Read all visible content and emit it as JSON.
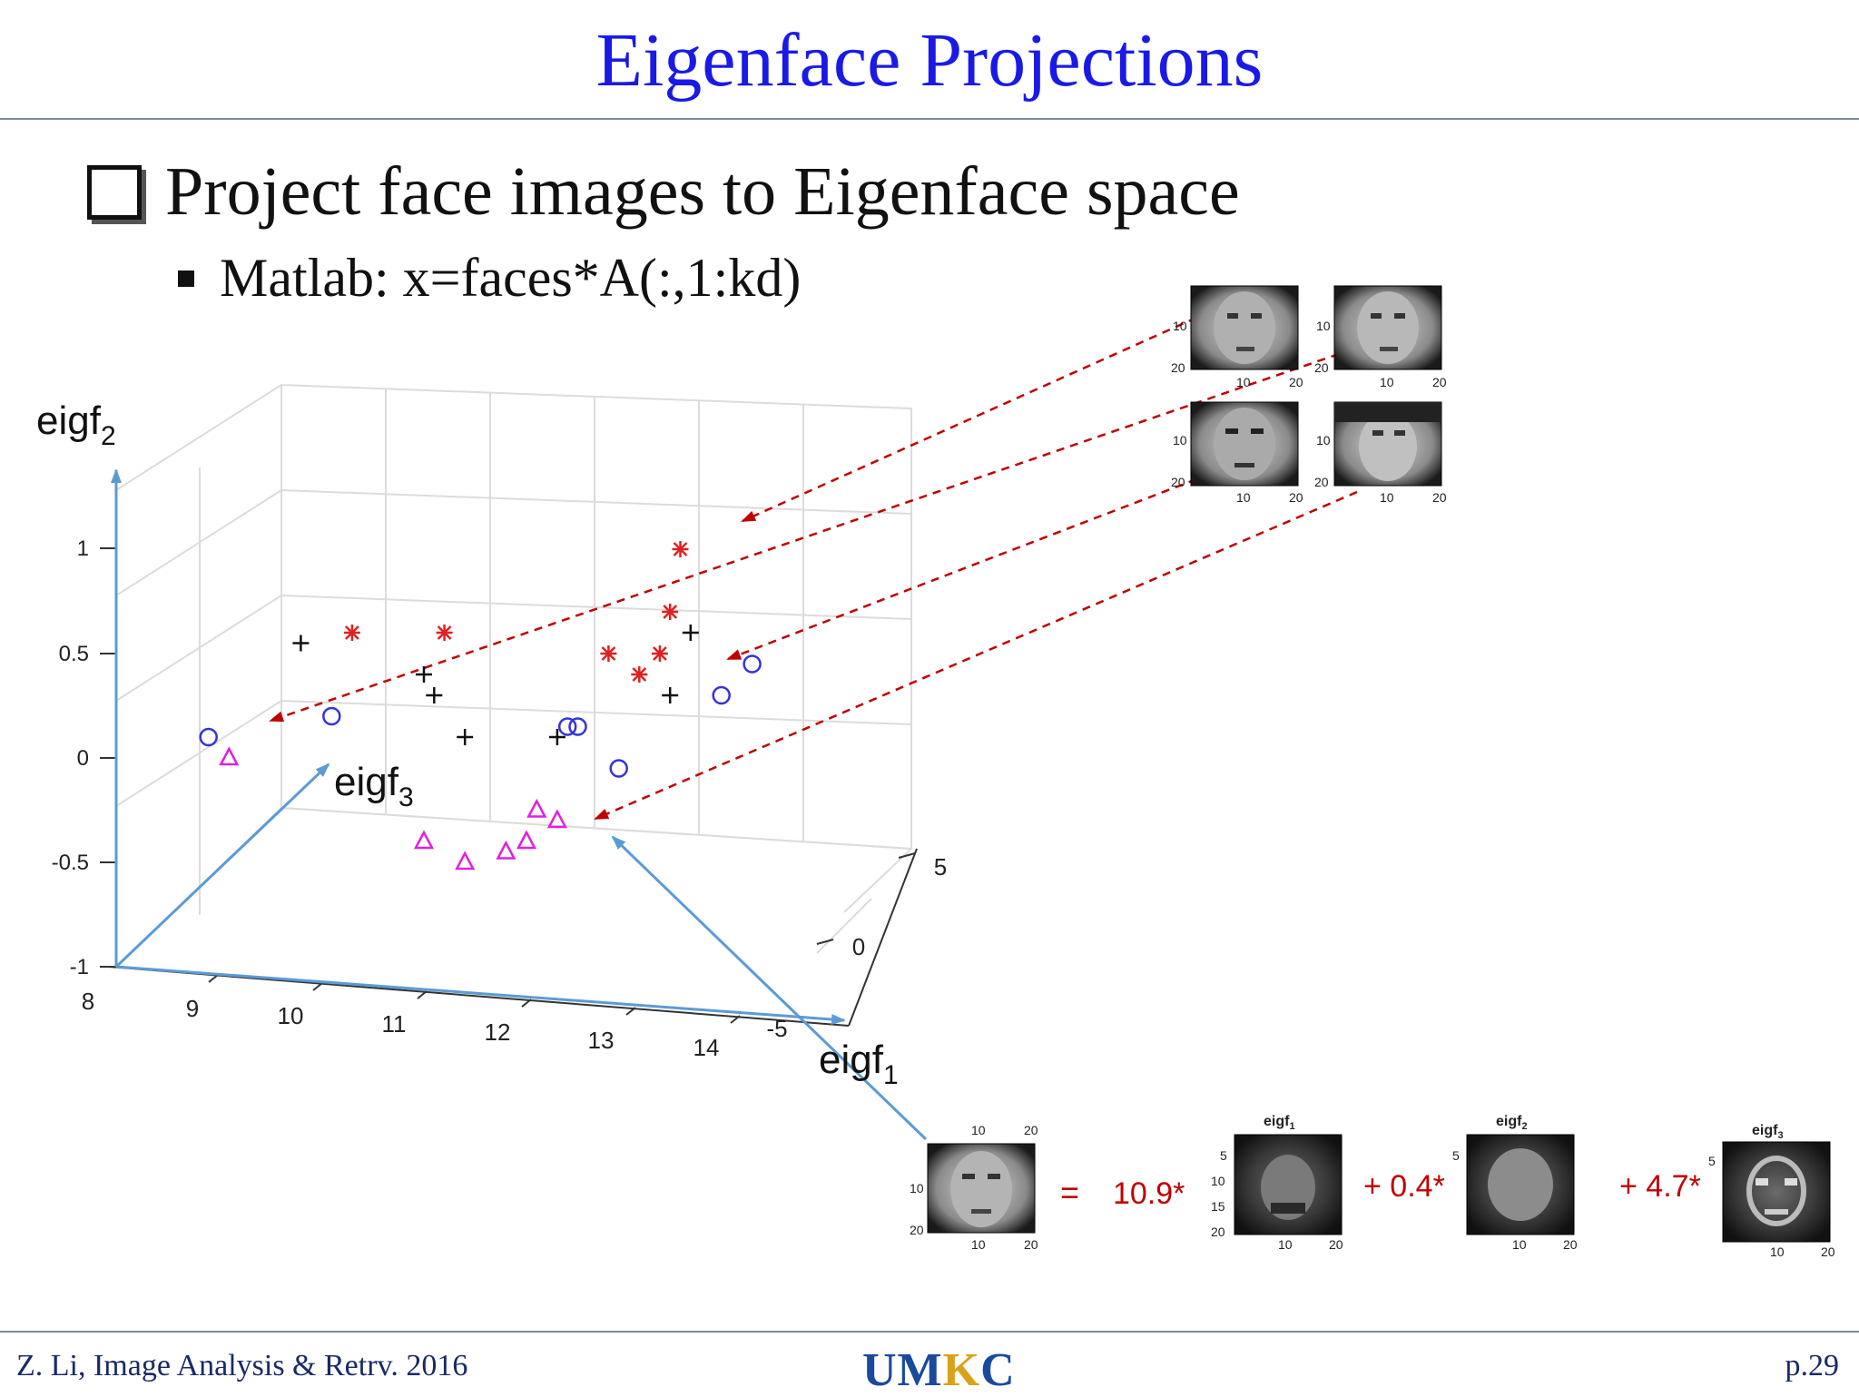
{
  "slide": {
    "title": "Eigenface Projections",
    "bullet1": "Project face images to Eigenface space",
    "bullet2": "Matlab: x=faces*A(:,1:kd)"
  },
  "axes": {
    "eigf2_label": "eigf",
    "eigf2_sub": "2",
    "eigf3_label": "eigf",
    "eigf3_sub": "3",
    "eigf1_label": "eigf",
    "eigf1_sub": "1",
    "vertical_ticks": [
      "1",
      "0.5",
      "0",
      "-0.5",
      "-1"
    ],
    "bottom_ticks": [
      "8",
      "9",
      "10",
      "11",
      "12",
      "13",
      "14"
    ],
    "depth_ticks": [
      "5",
      "0",
      "-5"
    ]
  },
  "thumb_ticks": {
    "t10": "10",
    "t20": "20",
    "t5": "5",
    "t15": "15"
  },
  "equation": {
    "equals": "=",
    "coef1": "10.9*",
    "coef2": "+ 0.4*",
    "coef3": "+ 4.7*",
    "eig1_title": "eigf",
    "eig1_sub": "1",
    "eig2_title": "eigf",
    "eig2_sub": "2",
    "eig3_title": "eigf",
    "eig3_sub": "3"
  },
  "footer": {
    "left": "Z. Li, Image Analysis & Retrv. 2016",
    "logo_a": "UM",
    "logo_b": "K",
    "logo_c": "C",
    "page": "p.29"
  },
  "colors": {
    "title": "#1a1ae6",
    "arrow_blue": "#5b9bd5",
    "star_red": "#e02020",
    "circle_blue": "#3333dd",
    "triangle_magenta": "#e020e0",
    "dash_red": "#c00000",
    "coef_red": "#c00000"
  },
  "chart_data": {
    "type": "scatter",
    "axes": {
      "x": [
        8,
        14
      ],
      "z": [
        -5,
        5
      ],
      "y": [
        -1,
        1
      ]
    },
    "series": [
      {
        "marker": "star",
        "points": [
          [
            10.3,
            0.6
          ],
          [
            11.2,
            0.6
          ],
          [
            12.8,
            0.5
          ],
          [
            13.1,
            0.4
          ],
          [
            13.3,
            0.5
          ],
          [
            13.4,
            0.7
          ],
          [
            13.5,
            1.0
          ]
        ]
      },
      {
        "marker": "plus",
        "points": [
          [
            9.8,
            0.55
          ],
          [
            11.0,
            0.4
          ],
          [
            11.1,
            0.3
          ],
          [
            11.4,
            0.1
          ],
          [
            12.3,
            0.1
          ],
          [
            13.4,
            0.3
          ],
          [
            13.6,
            0.6
          ]
        ]
      },
      {
        "marker": "circle",
        "points": [
          [
            8.9,
            0.1
          ],
          [
            10.1,
            0.2
          ],
          [
            12.4,
            0.15
          ],
          [
            12.5,
            0.15
          ],
          [
            12.9,
            -0.05
          ],
          [
            13.9,
            0.3
          ],
          [
            14.2,
            0.45
          ]
        ]
      },
      {
        "marker": "triangle",
        "points": [
          [
            9.1,
            0.0
          ],
          [
            11.0,
            -0.4
          ],
          [
            11.4,
            -0.5
          ],
          [
            11.8,
            -0.45
          ],
          [
            12.1,
            -0.25
          ],
          [
            12.3,
            -0.3
          ],
          [
            12.0,
            -0.4
          ]
        ]
      }
    ]
  }
}
